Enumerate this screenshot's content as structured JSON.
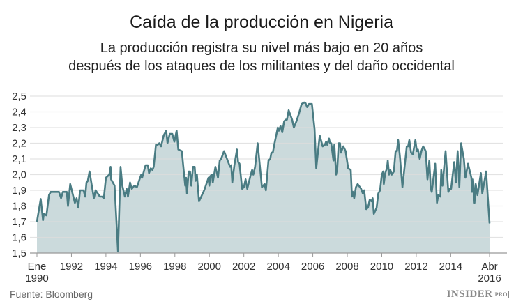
{
  "chart_data": {
    "type": "area",
    "title": "Caída de la producción en Nigeria",
    "subtitle": [
      "La producción registra su nivel más bajo en 20 años",
      "después de los ataques de los militantes y del daño occidental"
    ],
    "xlabel": "",
    "ylabel": "",
    "xlim": [
      1990,
      2016.25
    ],
    "ylim": [
      1.5,
      2.5
    ],
    "yticks": [
      "1,5",
      "1,6",
      "1,7",
      "1,8",
      "1,9",
      "2,0",
      "2,1",
      "2,2",
      "2,3",
      "2,4",
      "2,5"
    ],
    "xticks": [
      {
        "v": 1990,
        "l1": "Ene",
        "l2": "1990"
      },
      {
        "v": 1992,
        "l1": "1992",
        "l2": ""
      },
      {
        "v": 1994,
        "l1": "1994",
        "l2": ""
      },
      {
        "v": 1996,
        "l1": "1996",
        "l2": ""
      },
      {
        "v": 1998,
        "l1": "1998",
        "l2": ""
      },
      {
        "v": 2000,
        "l1": "2000",
        "l2": ""
      },
      {
        "v": 2002,
        "l1": "2002",
        "l2": ""
      },
      {
        "v": 2004,
        "l1": "2004",
        "l2": ""
      },
      {
        "v": 2006,
        "l1": "2006",
        "l2": ""
      },
      {
        "v": 2008,
        "l1": "2008",
        "l2": ""
      },
      {
        "v": 2010,
        "l1": "2010",
        "l2": ""
      },
      {
        "v": 2012,
        "l1": "2012",
        "l2": ""
      },
      {
        "v": 2014,
        "l1": "2014",
        "l2": ""
      },
      {
        "v": 2016.25,
        "l1": "Abr",
        "l2": "2016"
      }
    ],
    "grid": true,
    "colors": {
      "line": "#4a7c83",
      "fill": "#cbdadc",
      "grid": "#dcdcdc"
    },
    "x": [
      1990.0,
      1990.22,
      1990.35,
      1990.4,
      1990.55,
      1990.7,
      1990.8,
      1991.28,
      1991.4,
      1991.5,
      1991.73,
      1991.8,
      1991.93,
      1992.2,
      1992.3,
      1992.4,
      1992.5,
      1992.7,
      1992.8,
      1992.87,
      1992.95,
      1993.05,
      1993.3,
      1993.4,
      1993.65,
      1993.78,
      1993.88,
      1994.0,
      1994.2,
      1994.27,
      1994.3,
      1994.5,
      1994.7,
      1994.85,
      1994.95,
      1995.1,
      1995.2,
      1995.28,
      1995.4,
      1995.5,
      1995.65,
      1995.8,
      1995.95,
      1996.05,
      1996.1,
      1996.3,
      1996.43,
      1996.5,
      1996.6,
      1996.7,
      1996.77,
      1996.9,
      1997.0,
      1997.1,
      1997.2,
      1997.35,
      1997.5,
      1997.57,
      1997.7,
      1997.85,
      1997.97,
      1998.1,
      1998.2,
      1998.4,
      1998.6,
      1998.65,
      1998.7,
      1998.8,
      1998.88,
      1998.95,
      1999.05,
      1999.15,
      1999.2,
      1999.28,
      1999.4,
      1999.7,
      1999.95,
      2000.0,
      2000.05,
      2000.15,
      2000.2,
      2000.35,
      2000.5,
      2000.6,
      2000.68,
      2000.85,
      2001.2,
      2001.27,
      2001.33,
      2001.45,
      2001.6,
      2001.67,
      2001.75,
      2001.9,
      2002.0,
      2002.1,
      2002.2,
      2002.4,
      2002.48,
      2002.55,
      2002.65,
      2002.8,
      2003.05,
      2003.2,
      2003.28,
      2003.43,
      2003.53,
      2003.6,
      2003.68,
      2003.8,
      2003.97,
      2004.03,
      2004.13,
      2004.23,
      2004.34,
      2004.43,
      2004.5,
      2004.6,
      2004.8,
      2004.9,
      2005.05,
      2005.2,
      2005.35,
      2005.5,
      2005.58,
      2005.67,
      2005.78,
      2005.95,
      2006.1,
      2006.2,
      2006.4,
      2006.57,
      2006.7,
      2006.77,
      2006.84,
      2006.94,
      2007.0,
      2007.07,
      2007.2,
      2007.25,
      2007.35,
      2007.42,
      2007.5,
      2007.58,
      2007.63,
      2007.77,
      2007.9,
      2008.05,
      2008.2,
      2008.27,
      2008.33,
      2008.4,
      2008.5,
      2008.6,
      2008.8,
      2008.9,
      2008.98,
      2009.1,
      2009.2,
      2009.3,
      2009.4,
      2009.47,
      2009.54,
      2009.7,
      2009.8,
      2009.9,
      2010.0,
      2010.08,
      2010.12,
      2010.2,
      2010.3,
      2010.35,
      2010.42,
      2010.5,
      2010.58,
      2010.7,
      2010.8,
      2010.88,
      2010.95,
      2011.05,
      2011.2,
      2011.45,
      2011.53,
      2011.6,
      2011.7,
      2011.8,
      2011.95,
      2012.03,
      2012.1,
      2012.2,
      2012.3,
      2012.4,
      2012.55,
      2012.65,
      2012.76,
      2012.84,
      2012.9,
      2013.1,
      2013.2,
      2013.28,
      2013.4,
      2013.45,
      2013.52,
      2013.7,
      2013.86,
      2013.94,
      2014.02,
      2014.2,
      2014.3,
      2014.4,
      2014.5,
      2014.6,
      2014.76,
      2014.85,
      2015.0,
      2015.2,
      2015.24,
      2015.3,
      2015.38,
      2015.45,
      2015.55,
      2015.75,
      2015.83,
      2016.05,
      2016.25
    ],
    "values": [
      1.7,
      1.845,
      1.71,
      1.75,
      1.74,
      1.87,
      1.89,
      1.89,
      1.85,
      1.89,
      1.89,
      1.8,
      1.94,
      1.82,
      1.85,
      1.79,
      1.9,
      1.9,
      1.86,
      1.95,
      1.96,
      2.02,
      1.85,
      1.9,
      1.86,
      1.86,
      1.85,
      1.98,
      2.0,
      2.05,
      1.97,
      1.93,
      1.51,
      2.05,
      1.93,
      1.86,
      1.91,
      1.86,
      1.95,
      1.91,
      1.93,
      1.92,
      1.97,
      2.0,
      1.98,
      2.06,
      2.06,
      2.01,
      2.04,
      2.03,
      2.05,
      2.19,
      2.19,
      2.2,
      2.18,
      2.25,
      2.28,
      2.2,
      2.26,
      2.26,
      2.21,
      2.28,
      2.16,
      2.15,
      1.93,
      1.98,
      1.88,
      2.02,
      2.02,
      1.93,
      2.05,
      2.05,
      1.96,
      2.0,
      1.83,
      1.9,
      1.98,
      1.93,
      1.99,
      2.0,
      1.95,
      2.05,
      1.98,
      2.09,
      2.1,
      2.15,
      2.05,
      2.06,
      1.95,
      2.06,
      2.16,
      2.08,
      2.07,
      1.91,
      1.92,
      1.97,
      1.91,
      2.0,
      2.03,
      2.0,
      2.05,
      2.2,
      1.92,
      1.94,
      1.9,
      2.09,
      2.1,
      2.14,
      2.14,
      2.21,
      2.3,
      2.28,
      2.31,
      2.27,
      2.34,
      2.35,
      2.35,
      2.41,
      2.35,
      2.3,
      2.34,
      2.39,
      2.45,
      2.46,
      2.455,
      2.43,
      2.45,
      2.45,
      2.29,
      2.04,
      2.25,
      2.18,
      2.19,
      2.21,
      2.19,
      2.23,
      2.2,
      2.2,
      2.09,
      2.19,
      2.0,
      2.04,
      2.2,
      2.2,
      2.14,
      2.18,
      2.15,
      2.04,
      2.03,
      1.86,
      1.89,
      1.85,
      1.92,
      1.94,
      1.91,
      1.88,
      1.9,
      1.78,
      1.79,
      1.84,
      1.83,
      1.85,
      1.75,
      1.79,
      1.88,
      1.9,
      2.0,
      2.02,
      1.94,
      2.01,
      2.04,
      2.09,
      2.0,
      2.03,
      2.0,
      2.02,
      2.15,
      2.15,
      2.22,
      2.12,
      1.92,
      2.18,
      2.18,
      2.22,
      2.14,
      2.13,
      2.22,
      2.15,
      2.16,
      2.1,
      2.15,
      2.18,
      2.15,
      1.97,
      2.09,
      1.91,
      1.89,
      2.07,
      1.82,
      1.87,
      1.86,
      2.03,
      1.93,
      2.15,
      1.89,
      1.91,
      1.91,
      2.08,
      1.95,
      2.15,
      1.92,
      2.2,
      2.1,
      1.98,
      2.07,
      1.98,
      1.89,
      1.97,
      1.82,
      1.94,
      1.87,
      2.01,
      1.88,
      2.02,
      1.69
    ]
  },
  "footer": {
    "source": "Fuente: Bloomberg",
    "logo": "INSIDER",
    "logo_badge": "PRO"
  }
}
